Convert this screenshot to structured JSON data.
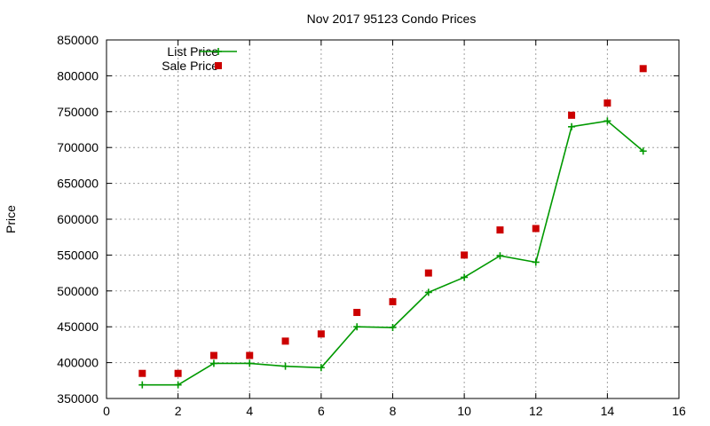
{
  "chart_data": {
    "type": "line",
    "title": "Nov 2017 95123 Condo Prices",
    "xlabel": "",
    "ylabel": "Price",
    "xlim": [
      0,
      16
    ],
    "ylim": [
      350000,
      850000
    ],
    "x_ticks": [
      "0",
      "2",
      "4",
      "6",
      "8",
      "10",
      "12",
      "14",
      "16"
    ],
    "y_ticks": [
      "350000",
      "400000",
      "450000",
      "500000",
      "550000",
      "600000",
      "650000",
      "700000",
      "750000",
      "800000",
      "850000"
    ],
    "grid": true,
    "legend_position": "top-left",
    "series": [
      {
        "name": "List Price",
        "style": "line-with-plus-markers",
        "color": "#009900",
        "x": [
          1,
          2,
          3,
          4,
          5,
          6,
          7,
          8,
          9,
          10,
          11,
          12,
          13,
          14,
          15
        ],
        "values": [
          369000,
          369000,
          399000,
          399000,
          395000,
          393000,
          450000,
          449000,
          498000,
          519000,
          549000,
          540000,
          729000,
          737000,
          695000
        ]
      },
      {
        "name": "Sale Price",
        "style": "square-markers",
        "color": "#cc0000",
        "x": [
          1,
          2,
          3,
          4,
          5,
          6,
          7,
          8,
          9,
          10,
          11,
          12,
          13,
          14,
          15
        ],
        "values": [
          385000,
          385000,
          410000,
          410000,
          430000,
          440000,
          470000,
          485000,
          525000,
          550000,
          585000,
          587000,
          745000,
          762000,
          810000
        ]
      }
    ]
  }
}
